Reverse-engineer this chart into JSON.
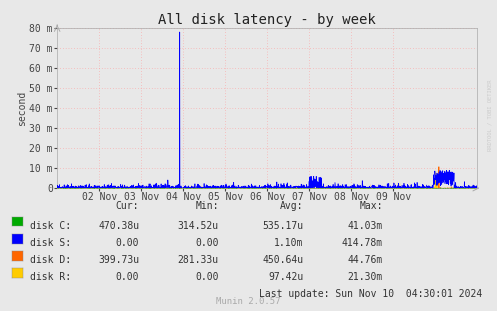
{
  "title": "All disk latency - by week",
  "ylabel": "second",
  "background_color": "#e8e8e8",
  "plot_bg_color": "#e8e8e8",
  "grid_color": "#ff9999",
  "grid_dash": [
    1,
    3
  ],
  "ylim": [
    0,
    0.08
  ],
  "yticks": [
    0,
    0.01,
    0.02,
    0.03,
    0.04,
    0.05,
    0.06,
    0.07,
    0.08
  ],
  "ytick_labels": [
    "0",
    "10 m",
    "20 m",
    "30 m",
    "40 m",
    "50 m",
    "60 m",
    "70 m",
    "80 m"
  ],
  "xlim_start": 1730246400,
  "xlim_end": 1731110400,
  "xtick_positions": [
    1730332800,
    1730419200,
    1730505600,
    1730592000,
    1730678400,
    1730764800,
    1730851200,
    1730937600
  ],
  "xtick_labels": [
    "02 Nov",
    "03 Nov",
    "04 Nov",
    "05 Nov",
    "06 Nov",
    "07 Nov",
    "08 Nov",
    "09 Nov"
  ],
  "disk_C_color": "#00aa00",
  "disk_S_color": "#0000ff",
  "disk_D_color": "#ff6600",
  "disk_R_color": "#ffcc00",
  "legend_entries": [
    {
      "label": "disk C:",
      "color": "#00aa00"
    },
    {
      "label": "disk S:",
      "color": "#0000ff"
    },
    {
      "label": "disk D:",
      "color": "#ff6600"
    },
    {
      "label": "disk R:",
      "color": "#ffcc00"
    }
  ],
  "table_headers": [
    "Cur:",
    "Min:",
    "Avg:",
    "Max:"
  ],
  "table_rows": [
    [
      "470.38u",
      "314.52u",
      "535.17u",
      "41.03m"
    ],
    [
      "0.00",
      "0.00",
      "1.10m",
      "414.78m"
    ],
    [
      "399.73u",
      "281.33u",
      "450.64u",
      "44.76m"
    ],
    [
      "0.00",
      "0.00",
      "97.42u",
      "21.30m"
    ]
  ],
  "last_update": "Last update: Sun Nov 10  04:30:01 2024",
  "munin_version": "Munin 2.0.57",
  "watermark": "RRDTOOL / TOBI OETIKER",
  "title_fontsize": 10,
  "axis_fontsize": 7,
  "table_fontsize": 7
}
